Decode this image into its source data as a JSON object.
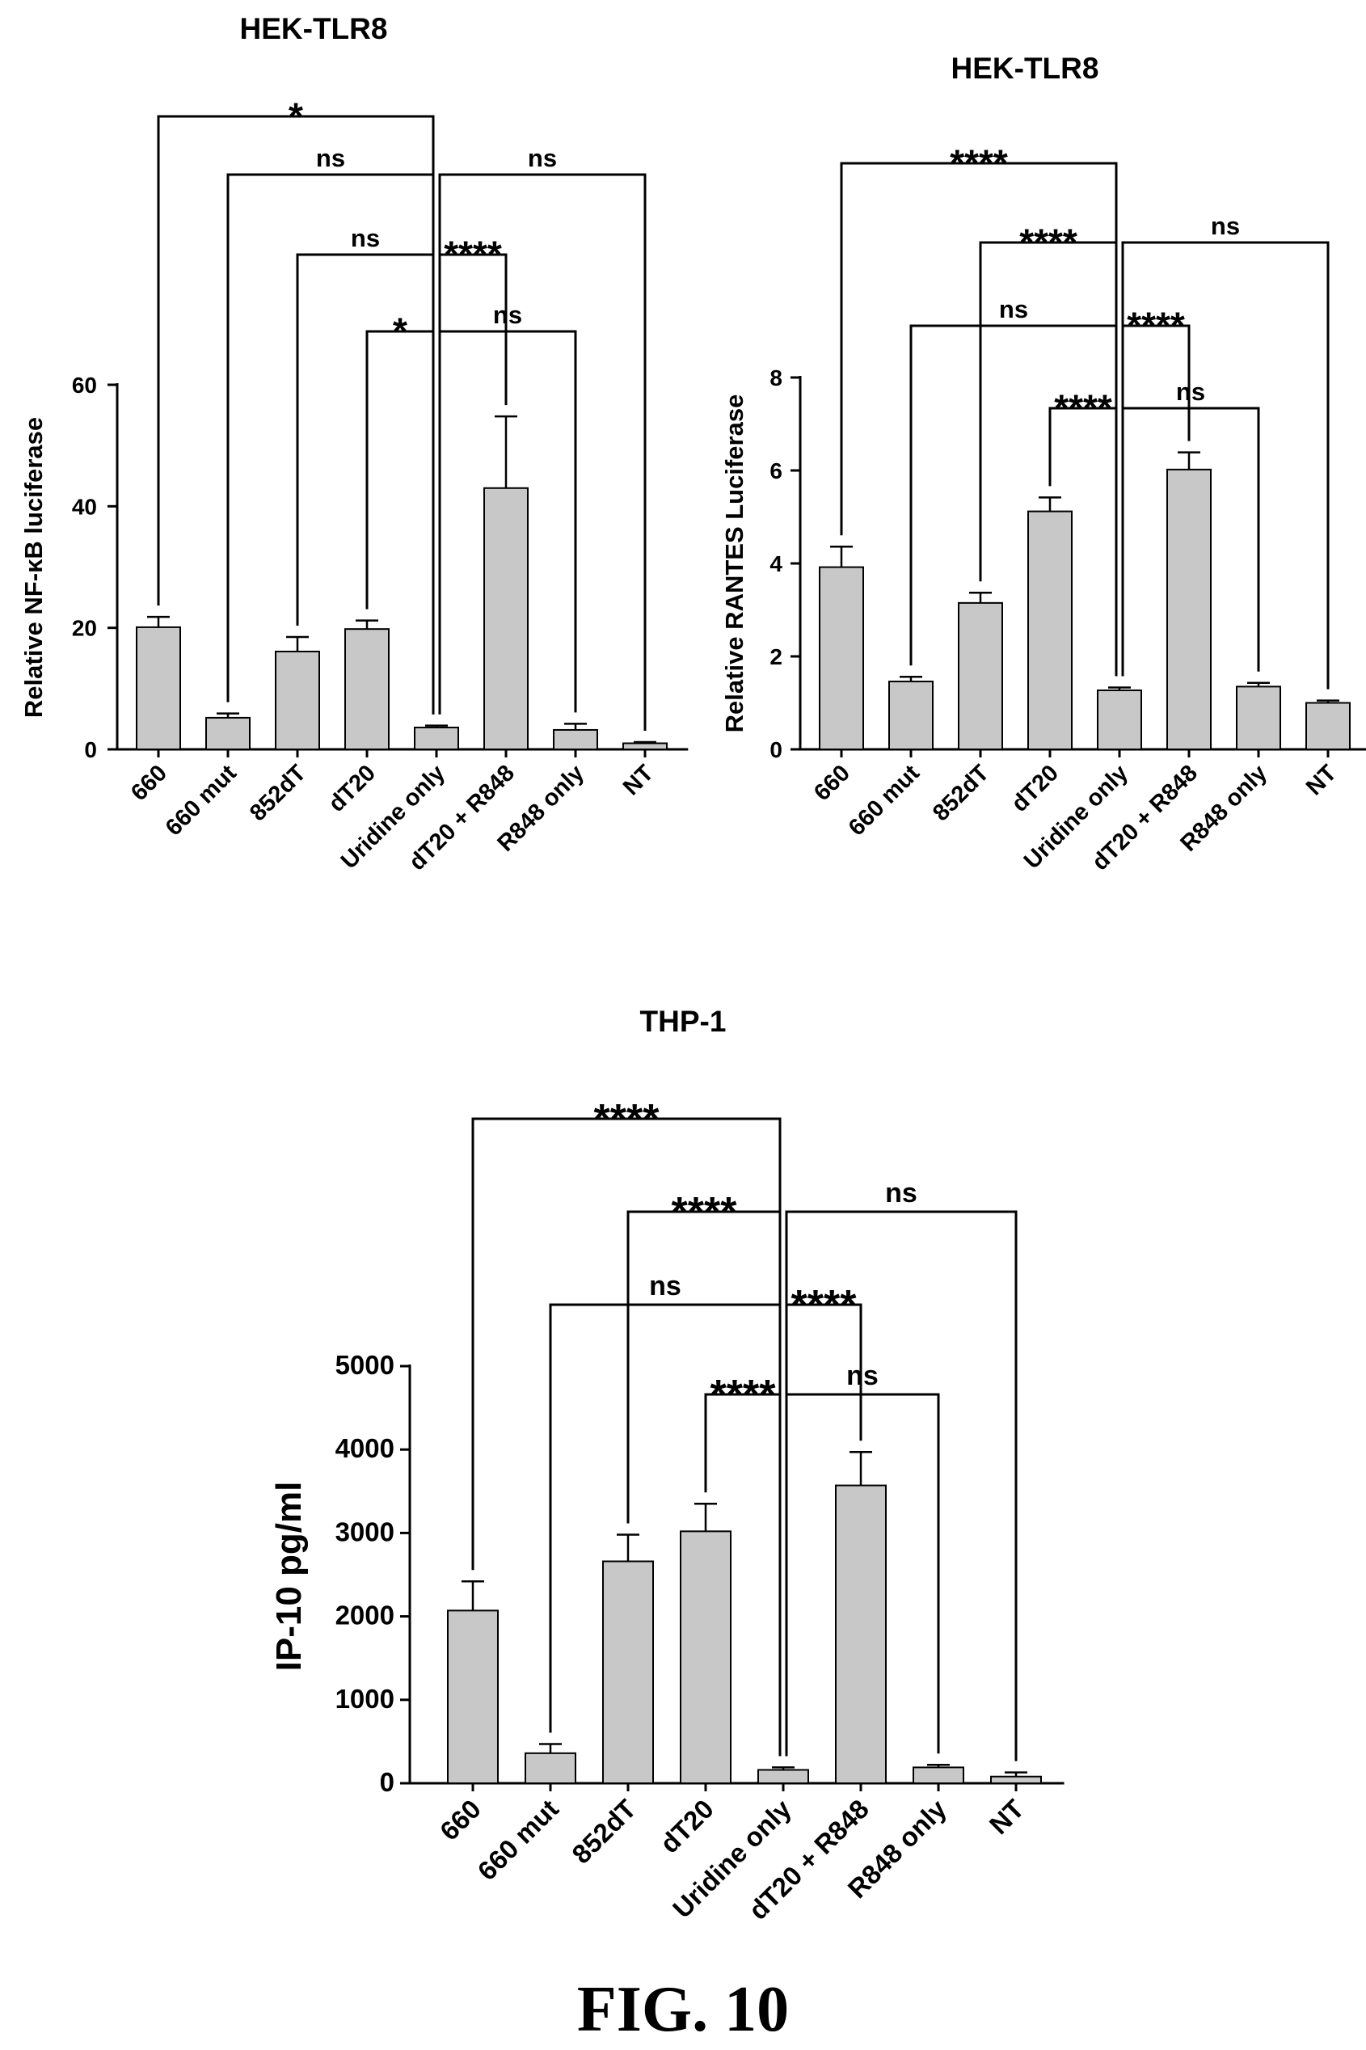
{
  "figure_label": "FIG. 10",
  "chart_data": [
    {
      "type": "bar",
      "title": "HEK-TLR8",
      "xlabel": "",
      "ylabel": "Relative NF-κB luciferase",
      "ylim": [
        0,
        60
      ],
      "yticks": [
        0,
        20,
        40,
        60
      ],
      "categories": [
        "660",
        "660 mut",
        "852dT",
        "dT20",
        "Uridine only",
        "dT20 + R848",
        "R848 only",
        "NT"
      ],
      "values": [
        20.1,
        5.2,
        16.1,
        19.8,
        3.6,
        43.0,
        3.2,
        1.0
      ],
      "errors": [
        1.7,
        0.7,
        2.4,
        1.4,
        0.3,
        11.8,
        1.0,
        0.2
      ],
      "bar_color": "#c8c8c8",
      "comparisons": [
        {
          "from": "660",
          "to": "Uridine only",
          "label": "*"
        },
        {
          "from": "660 mut",
          "to": "Uridine only",
          "label": "ns"
        },
        {
          "from": "Uridine only",
          "to": "NT",
          "label": "ns"
        },
        {
          "from": "852dT",
          "to": "Uridine only",
          "label": "ns"
        },
        {
          "from": "Uridine only",
          "to": "dT20 + R848",
          "label": "****"
        },
        {
          "from": "dT20",
          "to": "Uridine only",
          "label": "*"
        },
        {
          "from": "Uridine only",
          "to": "R848 only",
          "label": "ns"
        }
      ]
    },
    {
      "type": "bar",
      "title": "HEK-TLR8",
      "xlabel": "",
      "ylabel": "Relative RANTES Luciferase",
      "ylim": [
        0,
        8
      ],
      "yticks": [
        0,
        2,
        4,
        6,
        8
      ],
      "categories": [
        "660",
        "660 mut",
        "852dT",
        "dT20",
        "Uridine only",
        "dT20 + R848",
        "R848 only",
        "NT"
      ],
      "values": [
        3.92,
        1.46,
        3.15,
        5.12,
        1.27,
        6.02,
        1.35,
        1.0
      ],
      "errors": [
        0.44,
        0.1,
        0.22,
        0.3,
        0.06,
        0.37,
        0.08,
        0.05
      ],
      "bar_color": "#c8c8c8",
      "comparisons": [
        {
          "from": "660",
          "to": "Uridine only",
          "label": "****"
        },
        {
          "from": "852dT",
          "to": "Uridine only",
          "label": "****"
        },
        {
          "from": "Uridine only",
          "to": "NT",
          "label": "ns"
        },
        {
          "from": "660 mut",
          "to": "Uridine only",
          "label": "ns"
        },
        {
          "from": "Uridine only",
          "to": "dT20 + R848",
          "label": "****"
        },
        {
          "from": "dT20",
          "to": "Uridine only",
          "label": "****"
        },
        {
          "from": "Uridine only",
          "to": "R848 only",
          "label": "ns"
        }
      ]
    },
    {
      "type": "bar",
      "title": "THP-1",
      "xlabel": "",
      "ylabel": "IP-10 pg/ml",
      "ylim": [
        0,
        5000
      ],
      "yticks": [
        0,
        1000,
        2000,
        3000,
        4000,
        5000
      ],
      "categories": [
        "660",
        "660 mut",
        "852dT",
        "dT20",
        "Uridine only",
        "dT20 + R848",
        "R848 only",
        "NT"
      ],
      "values": [
        2070,
        360,
        2660,
        3020,
        160,
        3570,
        190,
        80
      ],
      "errors": [
        350,
        110,
        320,
        330,
        30,
        400,
        30,
        50
      ],
      "bar_color": "#c8c8c8",
      "comparisons": [
        {
          "from": "660",
          "to": "Uridine only",
          "label": "****"
        },
        {
          "from": "852dT",
          "to": "Uridine only",
          "label": "****"
        },
        {
          "from": "Uridine only",
          "to": "NT",
          "label": "ns"
        },
        {
          "from": "660 mut",
          "to": "Uridine only",
          "label": "ns"
        },
        {
          "from": "Uridine only",
          "to": "dT20 + R848",
          "label": "****"
        },
        {
          "from": "dT20",
          "to": "Uridine only",
          "label": "****"
        },
        {
          "from": "Uridine only",
          "to": "R848 only",
          "label": "ns"
        }
      ]
    }
  ]
}
